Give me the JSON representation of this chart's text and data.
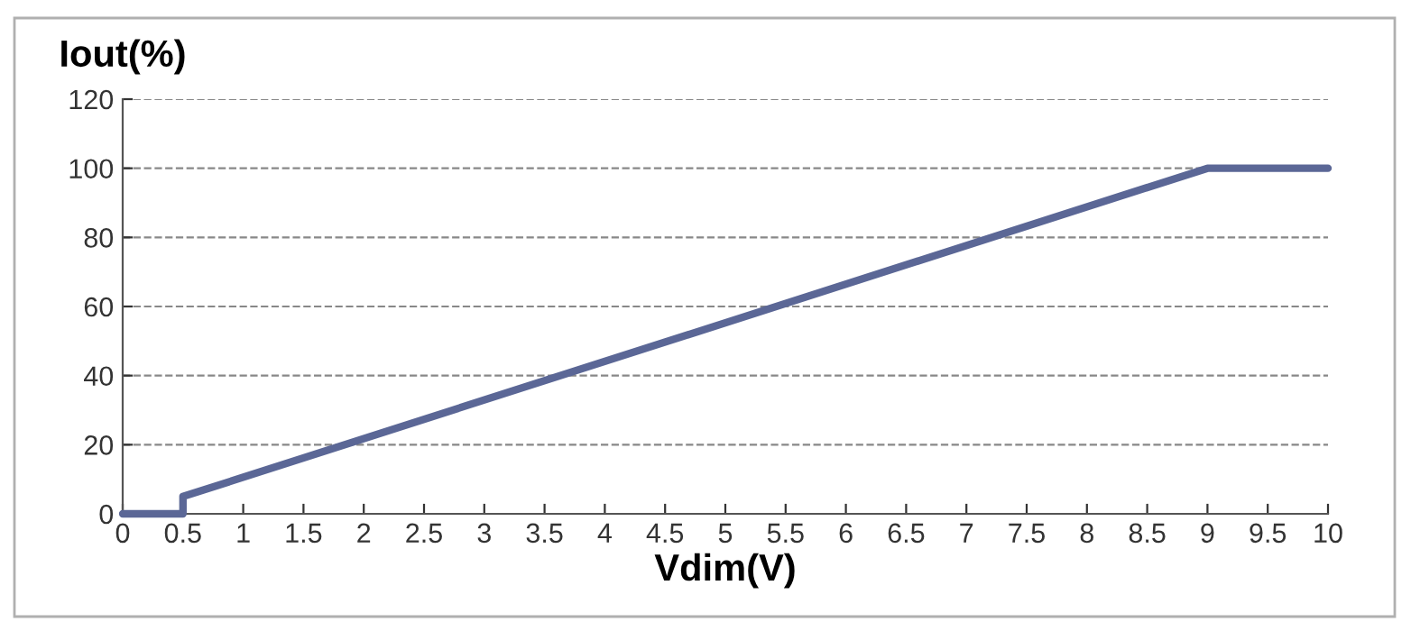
{
  "chart_data": {
    "type": "line",
    "xlabel": "Vdim(V)",
    "ylabel": "Iout(%)",
    "x": [
      0,
      0.5,
      0.5,
      9,
      10
    ],
    "series": [
      {
        "color": "#5b6796",
        "values": [
          0,
          0,
          5,
          100,
          100
        ]
      }
    ],
    "xlim": [
      0,
      10
    ],
    "ylim": [
      0,
      120
    ],
    "xticks": [
      0,
      0.5,
      1,
      1.5,
      2,
      2.5,
      3,
      3.5,
      4,
      4.5,
      5,
      5.5,
      6,
      6.5,
      7,
      7.5,
      8,
      8.5,
      9,
      9.5,
      10
    ],
    "yticks": [
      0,
      20,
      40,
      60,
      80,
      100,
      120
    ],
    "grid": "y",
    "line_style": "solid",
    "marker": "none",
    "legend": false
  }
}
